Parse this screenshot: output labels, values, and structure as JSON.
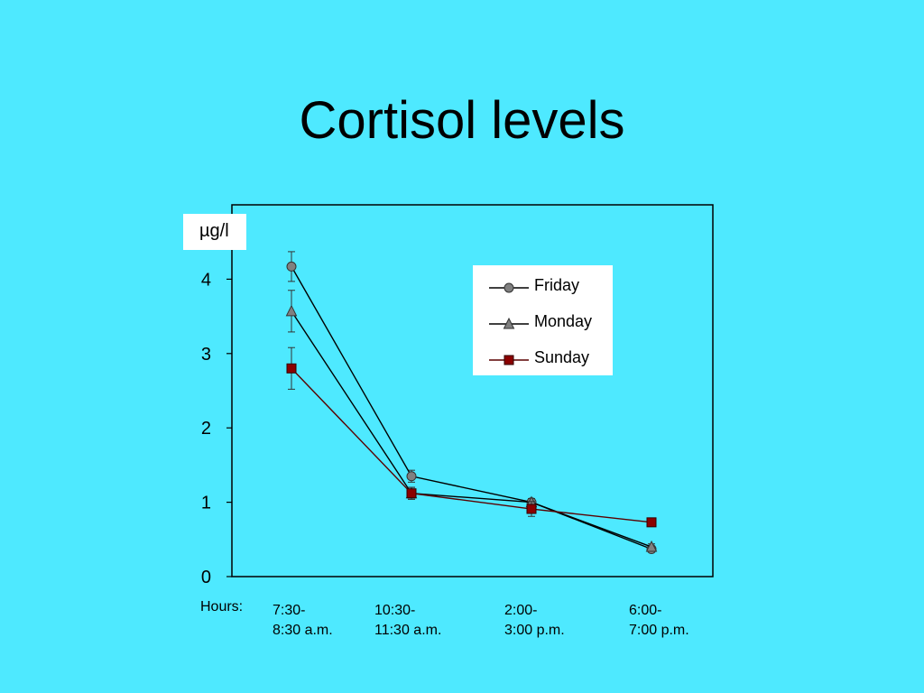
{
  "title": "Cortisol levels",
  "chart_data": {
    "type": "line",
    "title": "Cortisol levels",
    "ylabel": "µg/l",
    "xlabel": "Hours:",
    "ylim": [
      0,
      5
    ],
    "yticks": [
      0,
      1,
      2,
      3,
      4
    ],
    "categories": [
      [
        "7:30-",
        "8:30 a.m."
      ],
      [
        "10:30-",
        "11:30 a.m."
      ],
      [
        "2:00-",
        "3:00 p.m."
      ],
      [
        "6:00-",
        "7:00 p.m."
      ]
    ],
    "legend_position": "top-right",
    "series": [
      {
        "name": "Friday",
        "marker": "circle",
        "color": "#808080",
        "line_color": "#000000",
        "values": [
          4.17,
          1.35,
          1.0,
          0.37
        ],
        "error": [
          0.2,
          0.08,
          0.05,
          0.04
        ]
      },
      {
        "name": "Monday",
        "marker": "triangle",
        "color": "#808080",
        "line_color": "#000000",
        "values": [
          3.57,
          1.12,
          1.0,
          0.4
        ],
        "error": [
          0.28,
          0.08,
          0.05,
          0.04
        ]
      },
      {
        "name": "Sunday",
        "marker": "square",
        "color": "#8B0000",
        "line_color": "#5A0000",
        "values": [
          2.8,
          1.12,
          0.91,
          0.73
        ],
        "error": [
          0.28,
          0.08,
          0.1,
          0.05
        ]
      }
    ]
  }
}
